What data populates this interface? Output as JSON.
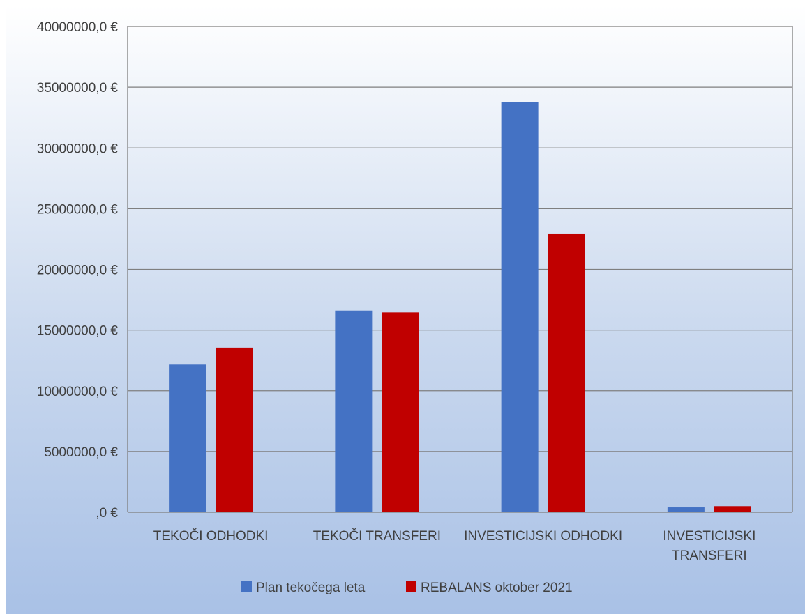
{
  "chart_data": {
    "type": "bar",
    "categories": [
      [
        "TEKOČI ODHODKI"
      ],
      [
        "TEKOČI TRANSFERI"
      ],
      [
        "INVESTICIJSKI ODHODKI"
      ],
      [
        "INVESTICIJSKI",
        "TRANSFERI"
      ]
    ],
    "series": [
      {
        "name": "Plan tekočega leta",
        "color": "#4472c4",
        "values": [
          12150000,
          16600000,
          33800000,
          400000
        ]
      },
      {
        "name": "REBALANS oktober 2021",
        "color": "#c00000",
        "values": [
          13550000,
          16450000,
          22900000,
          500000
        ]
      }
    ],
    "ylim": [
      0,
      40000000
    ],
    "y_ticks": [
      0,
      5000000,
      10000000,
      15000000,
      20000000,
      25000000,
      30000000,
      35000000,
      40000000
    ],
    "y_tick_labels": [
      ",0 €",
      "5000000,0 €",
      "10000000,0 €",
      "15000000,0 €",
      "20000000,0 €",
      "25000000,0 €",
      "30000000,0 €",
      "35000000,0 €",
      "40000000,0 €"
    ],
    "grid": true,
    "legend_position": "bottom"
  }
}
